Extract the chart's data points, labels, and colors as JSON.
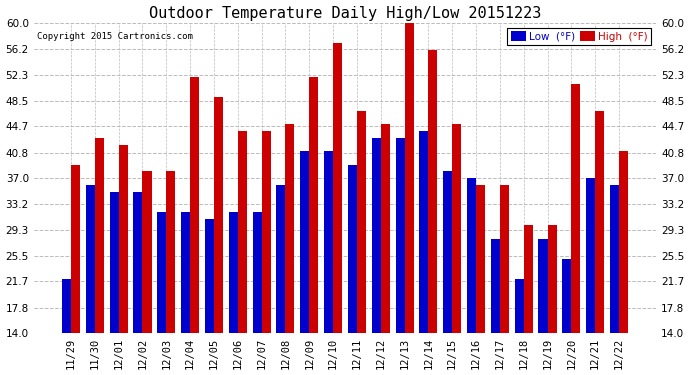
{
  "title": "Outdoor Temperature Daily High/Low 20151223",
  "copyright": "Copyright 2015 Cartronics.com",
  "legend_low": "Low  (°F)",
  "legend_high": "High  (°F)",
  "low_color": "#0000cc",
  "high_color": "#cc0000",
  "categories": [
    "11/29",
    "11/30",
    "12/01",
    "12/02",
    "12/03",
    "12/04",
    "12/05",
    "12/06",
    "12/07",
    "12/08",
    "12/09",
    "12/10",
    "12/11",
    "12/12",
    "12/13",
    "12/14",
    "12/15",
    "12/16",
    "12/17",
    "12/18",
    "12/19",
    "12/20",
    "12/21",
    "12/22"
  ],
  "low": [
    22,
    36,
    35,
    35,
    32,
    32,
    31,
    32,
    32,
    36,
    41,
    41,
    39,
    43,
    43,
    44,
    38,
    37,
    28,
    22,
    28,
    25,
    37,
    36
  ],
  "high": [
    39,
    43,
    42,
    38,
    38,
    52,
    49,
    44,
    44,
    45,
    52,
    57,
    47,
    45,
    60,
    56,
    45,
    36,
    36,
    30,
    30,
    51,
    47,
    41
  ],
  "ymin": 14.0,
  "ymax": 60.0,
  "yticks": [
    14.0,
    17.8,
    21.7,
    25.5,
    29.3,
    33.2,
    37.0,
    40.8,
    44.7,
    48.5,
    52.3,
    56.2,
    60.0
  ],
  "background_color": "#ffffff",
  "grid_color": "#bbbbbb",
  "bar_width": 0.38,
  "title_fontsize": 11,
  "tick_fontsize": 7.5,
  "figsize": [
    6.9,
    3.75
  ],
  "dpi": 100
}
